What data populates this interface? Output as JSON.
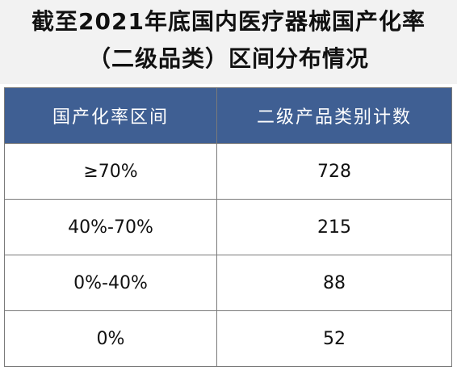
{
  "title": {
    "line1": "截至2021年底国内医疗器械国产化率",
    "line2": "（二级品类）区间分布情况"
  },
  "table": {
    "headers": [
      "国产化率区间",
      "二级产品类别计数"
    ],
    "rows": [
      {
        "range": "≥70%",
        "count": "728"
      },
      {
        "range": "40%-70%",
        "count": "215"
      },
      {
        "range": "0%-40%",
        "count": "88"
      },
      {
        "range": "0%",
        "count": "52"
      }
    ]
  },
  "colors": {
    "header_bg": "#3f5f93",
    "title_bg": "#f2f2f2",
    "border": "#7a7a7a"
  }
}
